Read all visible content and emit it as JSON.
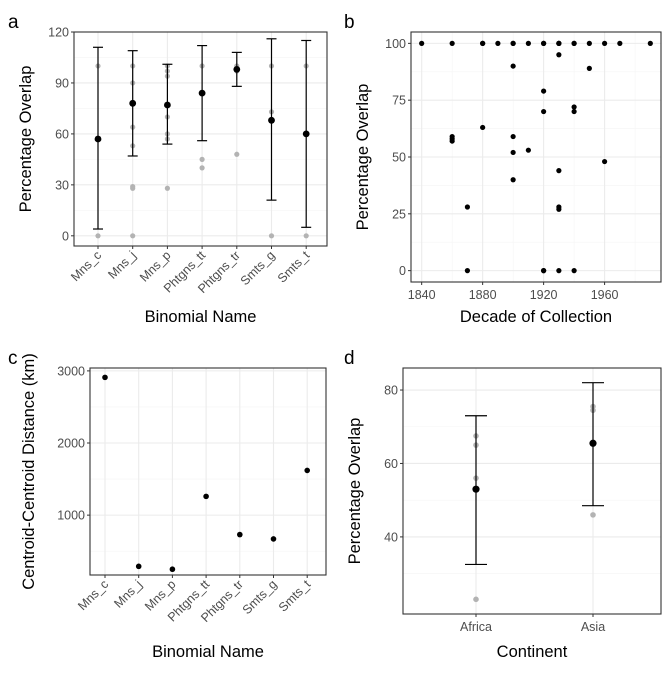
{
  "chart_data": [
    {
      "panel": "a",
      "type": "scatter",
      "xlabel": "Binomial Name",
      "ylabel": "Percentage Overlap",
      "categories": [
        "Mns_c",
        "Mns_j",
        "Mns_p",
        "Phtgns_tt",
        "Phtgns_tr",
        "Smts_g",
        "Smts_t"
      ],
      "ylim": [
        -6,
        120
      ],
      "yticks": [
        0,
        30,
        60,
        90,
        120
      ],
      "grid": true,
      "raw_points": [
        {
          "category": "Mns_c",
          "values": [
            100,
            0
          ]
        },
        {
          "category": "Mns_j",
          "values": [
            100,
            90,
            64,
            53,
            29,
            28,
            0
          ]
        },
        {
          "category": "Mns_p",
          "values": [
            100,
            97,
            94,
            70,
            60,
            57,
            28
          ]
        },
        {
          "category": "Phtgns_tt",
          "values": [
            100,
            45,
            40
          ]
        },
        {
          "category": "Phtgns_tr",
          "values": [
            100,
            97,
            48
          ]
        },
        {
          "category": "Smts_g",
          "values": [
            100,
            73,
            0
          ]
        },
        {
          "category": "Smts_t",
          "values": [
            100,
            0
          ]
        }
      ],
      "summary": [
        {
          "category": "Mns_c",
          "mean": 57,
          "lower": 4,
          "upper": 111
        },
        {
          "category": "Mns_j",
          "mean": 78,
          "lower": 47,
          "upper": 109
        },
        {
          "category": "Mns_p",
          "mean": 77,
          "lower": 54,
          "upper": 101
        },
        {
          "category": "Phtgns_tt",
          "mean": 84,
          "lower": 56,
          "upper": 112
        },
        {
          "category": "Phtgns_tr",
          "mean": 98,
          "lower": 88,
          "upper": 108
        },
        {
          "category": "Smts_g",
          "mean": 68,
          "lower": 21,
          "upper": 116
        },
        {
          "category": "Smts_t",
          "mean": 60,
          "lower": 5,
          "upper": 115
        }
      ]
    },
    {
      "panel": "b",
      "type": "scatter",
      "xlabel": "Decade of Collection",
      "ylabel": "Percentage Overlap",
      "xlim": [
        1833,
        1997
      ],
      "ylim": [
        -5,
        105
      ],
      "xticks": [
        1840,
        1880,
        1920,
        1960
      ],
      "yticks": [
        0,
        25,
        50,
        75,
        100
      ],
      "grid": true,
      "points": [
        [
          1840,
          100
        ],
        [
          1860,
          100
        ],
        [
          1880,
          100
        ],
        [
          1890,
          100
        ],
        [
          1900,
          100
        ],
        [
          1910,
          100
        ],
        [
          1920,
          100
        ],
        [
          1930,
          100
        ],
        [
          1940,
          100
        ],
        [
          1950,
          100
        ],
        [
          1960,
          100
        ],
        [
          1970,
          100
        ],
        [
          1990,
          100
        ],
        [
          1880,
          100
        ],
        [
          1900,
          100
        ],
        [
          1920,
          100
        ],
        [
          1930,
          100
        ],
        [
          1930,
          100
        ],
        [
          1940,
          100
        ],
        [
          1860,
          59
        ],
        [
          1860,
          58
        ],
        [
          1860,
          57
        ],
        [
          1870,
          28
        ],
        [
          1870,
          0
        ],
        [
          1880,
          63
        ],
        [
          1900,
          90
        ],
        [
          1900,
          59
        ],
        [
          1900,
          52
        ],
        [
          1900,
          40
        ],
        [
          1910,
          53
        ],
        [
          1920,
          79
        ],
        [
          1920,
          70
        ],
        [
          1920,
          0
        ],
        [
          1920,
          0
        ],
        [
          1930,
          95
        ],
        [
          1930,
          44
        ],
        [
          1930,
          28
        ],
        [
          1930,
          27
        ],
        [
          1930,
          0
        ],
        [
          1940,
          72
        ],
        [
          1940,
          70
        ],
        [
          1940,
          0
        ],
        [
          1950,
          89
        ],
        [
          1960,
          48
        ]
      ]
    },
    {
      "panel": "c",
      "type": "scatter",
      "xlabel": "Binomial Name",
      "ylabel": "Centroid-Centroid Distance (km)",
      "categories": [
        "Mns_c",
        "Mns_j",
        "Mns_p",
        "Phtgns_tt",
        "Phtgns_tr",
        "Smts_g",
        "Smts_t"
      ],
      "ylim": [
        170,
        3040
      ],
      "yticks": [
        1000,
        2000,
        3000
      ],
      "grid": true,
      "values": [
        2910,
        290,
        250,
        1260,
        730,
        670,
        1620
      ]
    },
    {
      "panel": "d",
      "type": "scatter",
      "xlabel": "Continent",
      "ylabel": "Percentage Overlap",
      "categories": [
        "Africa",
        "Asia"
      ],
      "ylim": [
        19,
        86
      ],
      "yticks": [
        40,
        60,
        80
      ],
      "grid": true,
      "raw_points": [
        {
          "category": "Africa",
          "values": [
            67.5,
            65,
            56,
            53,
            23
          ]
        },
        {
          "category": "Asia",
          "values": [
            75.5,
            74.5,
            46
          ]
        }
      ],
      "summary": [
        {
          "category": "Africa",
          "mean": 53,
          "lower": 32.5,
          "upper": 73
        },
        {
          "category": "Asia",
          "mean": 65.5,
          "lower": 48.5,
          "upper": 82
        }
      ]
    }
  ],
  "colors": {
    "panel_border": "#333333",
    "grid_major": "#ebebeb",
    "grid_minor": "#f5f5f5",
    "raw_point": "#b3b3b3",
    "summary": "#000000",
    "tick_text": "#4d4d4d",
    "title_text": "#000000"
  }
}
